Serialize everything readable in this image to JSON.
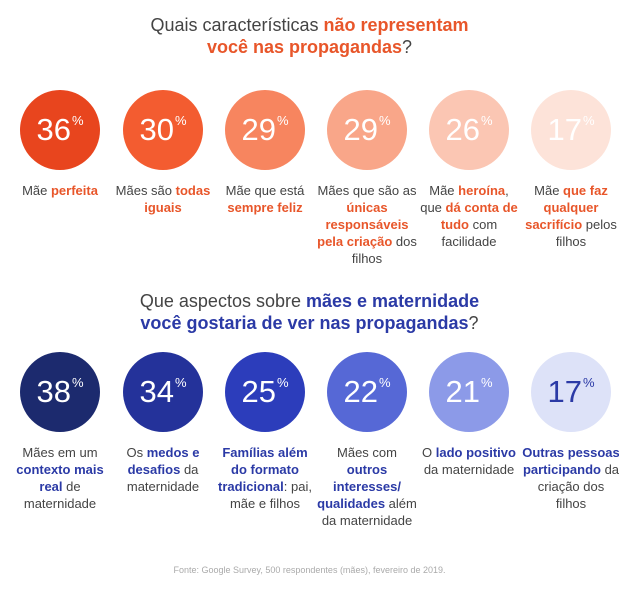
{
  "chart_data": [
    {
      "type": "bar",
      "title": [
        "Quais características ",
        "não representam",
        " você nas propagandas",
        "?"
      ],
      "categories": [
        [
          [
            "Mãe",
            false
          ],
          [
            " perfeita",
            true
          ]
        ],
        [
          [
            "Mães são",
            false
          ],
          [
            " todas iguais",
            true
          ]
        ],
        [
          [
            "Mãe que está",
            false
          ],
          [
            " sempre feliz",
            true
          ]
        ],
        [
          [
            "Mães que são as",
            false
          ],
          [
            " únicas responsáveis pela criação",
            true
          ],
          [
            " dos filhos",
            false
          ]
        ],
        [
          [
            "Mãe",
            false
          ],
          [
            " heroína",
            true
          ],
          [
            ", que",
            false
          ],
          [
            " dá conta de tudo",
            true
          ],
          [
            " com facilidade",
            false
          ]
        ],
        [
          [
            "Mãe",
            false
          ],
          [
            " que faz qualquer sacrifício",
            true
          ],
          [
            " pelos filhos",
            false
          ]
        ]
      ],
      "values": [
        36,
        30,
        29,
        29,
        26,
        17
      ],
      "unit": "%",
      "colors": [
        "#e8451e",
        "#f35c30",
        "#f7855f",
        "#f9a689",
        "#fbc6b3",
        "#fde3d9"
      ],
      "text_colors": [
        "#ffffff",
        "#ffffff",
        "#ffffff",
        "#ffffff",
        "#ffffff",
        "#ffffff"
      ]
    },
    {
      "type": "bar",
      "title": [
        "Que aspectos sobre ",
        "mães e maternidade",
        " você gostaria de ver nas propagandas",
        "?"
      ],
      "categories": [
        [
          [
            "Mães em um",
            false
          ],
          [
            " contexto mais real",
            true
          ],
          [
            " de maternidade",
            false
          ]
        ],
        [
          [
            "Os",
            false
          ],
          [
            " medos e desafios",
            true
          ],
          [
            " da maternidade",
            false
          ]
        ],
        [
          [
            "Famílias além do formato tradicional",
            true
          ],
          [
            ": pai, mãe e filhos",
            false
          ]
        ],
        [
          [
            "Mães com",
            false
          ],
          [
            " outros interesses/ qualidades",
            true
          ],
          [
            " além da maternidade",
            false
          ]
        ],
        [
          [
            "O",
            false
          ],
          [
            " lado positivo",
            true
          ],
          [
            " da maternidade",
            false
          ]
        ],
        [
          [
            "Outras pessoas participando",
            true
          ],
          [
            " da criação dos filhos",
            false
          ]
        ]
      ],
      "values": [
        38,
        34,
        25,
        22,
        21,
        17
      ],
      "unit": "%",
      "colors": [
        "#1c2a6e",
        "#24329a",
        "#2c3dbb",
        "#5668d6",
        "#8c9ae8",
        "#dde2f8"
      ],
      "text_colors": [
        "#ffffff",
        "#ffffff",
        "#ffffff",
        "#ffffff",
        "#ffffff",
        "#2b3aa6"
      ]
    }
  ],
  "footer": "Fonte: Google Survey, 500 respondentes (mães), fevereiro de 2019."
}
